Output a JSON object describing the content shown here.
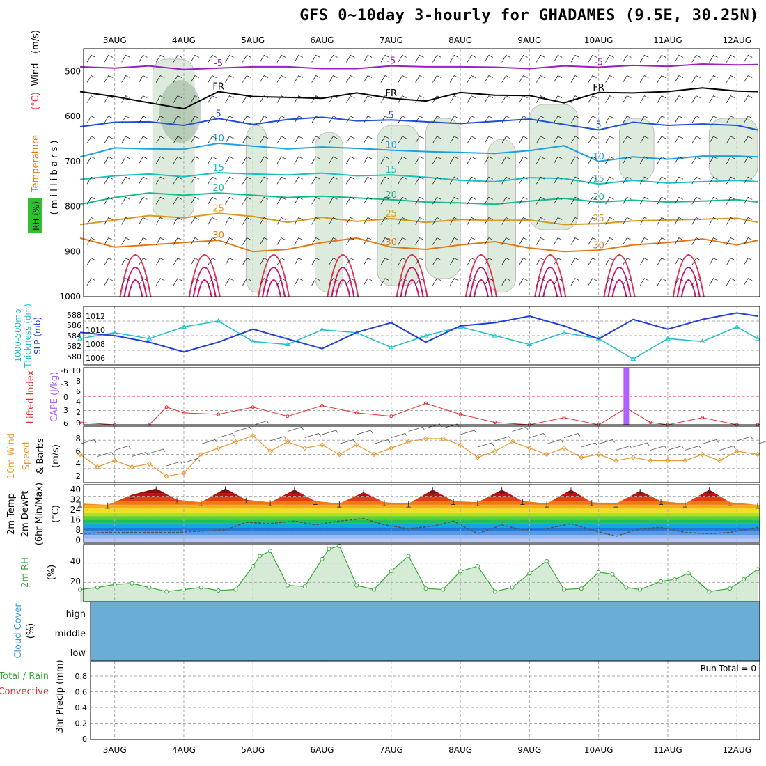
{
  "title": "GFS 0~10day 3-hourly for GHADAMES (9.5E, 30.25N)",
  "colors": {
    "grid": "#aaaaaa",
    "frame": "#000000",
    "rh_fill_light": "#dcebdc",
    "rh_fill_dark": "#9fb89f",
    "temp_minus5": "#9b1fbf",
    "temp_fr": "#000000",
    "temp_5": "#1f4fd0",
    "temp_10": "#1ea0e0",
    "temp_15": "#1dbfbf",
    "temp_20": "#18b890",
    "temp_25": "#d89a20",
    "temp_30": "#e07818",
    "temp_35": "#e03050",
    "temp_40": "#d0106a",
    "thickness": "#1ebfc8",
    "slp": "#1f3fd0",
    "cape": "#b060ff",
    "li": "#e03030",
    "wind10": "#e89a30",
    "barb": "#555555",
    "rh2m": "#3aa83a",
    "cloud": "#6aaed6",
    "dew": "#555555",
    "label_red": "#e03030"
  },
  "dates": [
    "3AUG",
    "4AUG",
    "5AUG",
    "6AUG",
    "7AUG",
    "8AUG",
    "9AUG",
    "10AUG",
    "11AUG",
    "12AUG"
  ],
  "panels": {
    "upper": {
      "ylabel_parts": [
        "Wind",
        "(m/s)",
        "Temperature",
        "(°C)"
      ],
      "ylabel_milli": "( m i l l i b a r s )",
      "rh_label": "RH (%)",
      "yticks": [
        "500",
        "600",
        "700",
        "800",
        "900",
        "1000"
      ],
      "contour_labels": [
        "-5",
        "FR",
        "5",
        "10",
        "15",
        "20",
        "25",
        "30"
      ]
    },
    "thick": {
      "ylabel1": "1000-500mb",
      "ylabel2": "Thickness (dm)",
      "ylabel3": "SLP (mb)",
      "left_ticks": [
        "588",
        "586",
        "584",
        "582",
        "580"
      ],
      "right_ticks": [
        "1012",
        "1010",
        "1008",
        "1006"
      ]
    },
    "cape": {
      "ylabel1": "Lifted Index",
      "ylabel2": "CAPE (J/kg)",
      "left_ticks": [
        "-6",
        "-3",
        "0",
        "3",
        "6"
      ],
      "right_ticks": [
        "10",
        "8",
        "6",
        "4",
        "2",
        "0"
      ]
    },
    "wind10": {
      "ylabel1": "10m Wind",
      "ylabel2": "Speed",
      "ylabel3": "& Barbs",
      "unit": "(m/s)",
      "ticks": [
        "8",
        "6",
        "4",
        "2"
      ]
    },
    "temp2m": {
      "ylabel1": "2m Temp",
      "ylabel2": "2m DewPt",
      "ylabel3": "(6hr Min/Max)",
      "unit": "(°C)",
      "ticks": [
        "40",
        "32",
        "24",
        "16",
        "8",
        "0"
      ]
    },
    "rh2m": {
      "ylabel1": "2m RH",
      "unit": "(%)",
      "ticks": [
        "40",
        "20"
      ]
    },
    "cloud": {
      "ylabel1": "Cloud Cover",
      "unit": "(%)",
      "ticks": [
        "high",
        "middle",
        "low"
      ]
    },
    "precip": {
      "ylabel1": "Total / Rain",
      "ylabel2": "Convective",
      "ylabel3": "3hr Precip (mm)",
      "ticks": [
        "0.8",
        "0.6",
        "0.4",
        "0.2",
        "0"
      ],
      "run_total": "Run Total = 0"
    }
  },
  "chart_data": [
    {
      "type": "line",
      "name": "upper-air isotherms (°C)",
      "x_days": [
        2.5,
        3,
        3.5,
        4,
        4.5,
        5,
        5.5,
        6,
        6.5,
        7,
        7.5,
        8,
        8.5,
        9,
        9.5,
        10,
        10.5,
        11,
        11.5,
        12,
        12.3
      ],
      "series": [
        {
          "name": "-5",
          "values": [
            490,
            493,
            488,
            496,
            493,
            490,
            490,
            494,
            494,
            488,
            490,
            490,
            491,
            494,
            488,
            491,
            487,
            489,
            484,
            486,
            485
          ]
        },
        {
          "name": "FR",
          "values": [
            545,
            556,
            570,
            583,
            545,
            556,
            558,
            560,
            548,
            560,
            566,
            547,
            553,
            554,
            570,
            547,
            548,
            545,
            537,
            544,
            545
          ]
        },
        {
          "name": "5",
          "values": [
            623,
            613,
            612,
            620,
            605,
            618,
            607,
            602,
            610,
            608,
            612,
            616,
            611,
            606,
            618,
            630,
            613,
            620,
            617,
            620,
            630
          ]
        },
        {
          "name": "10",
          "values": [
            690,
            670,
            672,
            673,
            660,
            666,
            672,
            668,
            671,
            675,
            678,
            680,
            682,
            676,
            665,
            700,
            690,
            695,
            688,
            688,
            690
          ]
        },
        {
          "name": "15",
          "values": [
            740,
            732,
            728,
            734,
            725,
            728,
            730,
            726,
            732,
            730,
            735,
            742,
            745,
            736,
            738,
            750,
            742,
            748,
            745,
            742,
            745
          ]
        },
        {
          "name": "20",
          "values": [
            795,
            780,
            770,
            775,
            770,
            775,
            780,
            777,
            781,
            785,
            790,
            792,
            795,
            788,
            782,
            790,
            786,
            790,
            788,
            785,
            790
          ]
        },
        {
          "name": "25",
          "values": [
            840,
            830,
            820,
            825,
            815,
            822,
            835,
            824,
            833,
            827,
            835,
            829,
            831,
            830,
            840,
            838,
            832,
            830,
            828,
            826,
            835
          ]
        },
        {
          "name": "30",
          "values": [
            870,
            890,
            885,
            880,
            875,
            900,
            895,
            880,
            870,
            890,
            895,
            885,
            878,
            892,
            900,
            897,
            885,
            880,
            872,
            885,
            875
          ]
        }
      ]
    },
    {
      "type": "line",
      "name": "thickness & slp",
      "x_days": [
        2.5,
        3,
        3.5,
        4,
        4.5,
        5,
        5.5,
        6,
        6.5,
        7,
        7.5,
        8,
        8.5,
        9,
        9.5,
        10,
        10.5,
        11,
        11.5,
        12,
        12.3
      ],
      "series": [
        {
          "name": "thickness",
          "values": [
            583.5,
            584.5,
            583.5,
            585.5,
            586.5,
            583.0,
            582.5,
            585.0,
            584.5,
            582.0,
            584.0,
            585.5,
            584.0,
            582.5,
            584.5,
            583.5,
            580.0,
            583.5,
            583.0,
            585.5,
            583.5
          ]
        },
        {
          "name": "slp",
          "values": [
            1009.5,
            1009.0,
            1008.0,
            1006.5,
            1008.0,
            1010.0,
            1008.5,
            1007.0,
            1009.5,
            1011.0,
            1008.0,
            1010.5,
            1011.0,
            1012.0,
            1010.5,
            1008.5,
            1011.5,
            1010.0,
            1011.5,
            1012.5,
            1012.0
          ]
        }
      ]
    },
    {
      "type": "line",
      "name": "lifted index & cape",
      "x_days": [
        2.5,
        3,
        3.5,
        3.75,
        4,
        4.5,
        5,
        5.5,
        6,
        6.5,
        7,
        7.5,
        8,
        8.5,
        9,
        9.5,
        10,
        10.4,
        10.75,
        11,
        11.5,
        12,
        12.3
      ],
      "series": [
        {
          "name": "lifted_index",
          "values": [
            5.5,
            6,
            6,
            2.3,
            3.5,
            3.8,
            2.3,
            4.2,
            2.0,
            3.5,
            4.2,
            1.5,
            3.8,
            5.5,
            6,
            4.5,
            6,
            2.5,
            5.5,
            6,
            4.5,
            6,
            6
          ]
        },
        {
          "name": "cape",
          "values": [
            0,
            0,
            0,
            0,
            0,
            0,
            0,
            0,
            0,
            0,
            0,
            0,
            0,
            0,
            0,
            0,
            0,
            10,
            0,
            0,
            0,
            0,
            0
          ]
        }
      ]
    },
    {
      "type": "line",
      "name": "10m wind speed (m/s)",
      "x_days": [
        2.5,
        2.75,
        3,
        3.25,
        3.5,
        3.75,
        4,
        4.25,
        4.5,
        4.75,
        5,
        5.25,
        5.5,
        5.75,
        6,
        6.25,
        6.5,
        6.75,
        7,
        7.25,
        7.5,
        7.75,
        8,
        8.25,
        8.5,
        8.75,
        9,
        9.25,
        9.5,
        9.75,
        10,
        10.25,
        10.5,
        10.75,
        11,
        11.25,
        11.5,
        11.75,
        12,
        12.3
      ],
      "values": [
        5.5,
        3.5,
        4.5,
        3.5,
        4.0,
        2.0,
        2.5,
        5.5,
        6.5,
        7.5,
        8.5,
        6.0,
        7.5,
        6.5,
        7.0,
        5.5,
        7.0,
        5.5,
        6.5,
        7.5,
        8.0,
        8.0,
        7.0,
        5.0,
        6.0,
        7.5,
        6.5,
        5.5,
        6.5,
        5.0,
        5.5,
        4.5,
        5.0,
        4.5,
        4.5,
        4.5,
        5.5,
        4.5,
        6.0,
        5.5
      ]
    },
    {
      "type": "area",
      "name": "2m temp & dewpoint",
      "x_days": [
        2.5,
        2.9,
        3.25,
        3.6,
        3.9,
        4.25,
        4.6,
        4.9,
        5.25,
        5.6,
        5.9,
        6.25,
        6.6,
        6.9,
        7.25,
        7.6,
        7.9,
        8.25,
        8.6,
        8.9,
        9.25,
        9.6,
        9.9,
        10.25,
        10.6,
        10.9,
        11.25,
        11.6,
        11.9,
        12.3
      ],
      "series": [
        {
          "name": "temp",
          "values": [
            29,
            28,
            36,
            41,
            32,
            30,
            41,
            32,
            30,
            40,
            31,
            29,
            38,
            30,
            29,
            40,
            31,
            30,
            40,
            31,
            29,
            40,
            30,
            29,
            39,
            31,
            29,
            40,
            30,
            28
          ]
        },
        {
          "name": "dewpoint",
          "values": [
            5,
            6,
            6,
            6,
            6,
            7,
            8,
            14,
            13,
            15,
            12,
            15,
            17,
            12,
            9,
            11,
            15,
            5,
            12,
            8,
            9,
            13,
            8,
            3,
            9,
            10,
            6,
            5,
            6,
            10
          ]
        }
      ]
    },
    {
      "type": "area",
      "name": "2m RH (%)",
      "x_days": [
        2.5,
        2.75,
        3,
        3.25,
        3.5,
        3.75,
        4,
        4.25,
        4.5,
        4.75,
        5,
        5.1,
        5.25,
        5.5,
        5.75,
        6,
        6.1,
        6.25,
        6.5,
        6.75,
        7,
        7.25,
        7.5,
        7.75,
        8,
        8.25,
        8.5,
        8.75,
        9,
        9.25,
        9.5,
        9.75,
        10,
        10.2,
        10.4,
        10.6,
        10.9,
        11.1,
        11.3,
        11.6,
        11.9,
        12.1,
        12.3
      ],
      "values": [
        12,
        14,
        17,
        18,
        14,
        10,
        12,
        14,
        11,
        12,
        35,
        45,
        50,
        16,
        15,
        42,
        52,
        55,
        16,
        12,
        30,
        45,
        13,
        12,
        30,
        35,
        10,
        14,
        28,
        40,
        12,
        13,
        29,
        27,
        14,
        12,
        20,
        22,
        28,
        10,
        13,
        22,
        32
      ]
    },
    {
      "type": "bar",
      "name": "cloud cover",
      "categories": [
        "high",
        "middle",
        "low"
      ],
      "values": [
        100,
        100,
        100
      ]
    },
    {
      "type": "bar",
      "name": "3hr precip (mm)",
      "categories": [],
      "values": [],
      "ylim": [
        0,
        1
      ]
    }
  ]
}
